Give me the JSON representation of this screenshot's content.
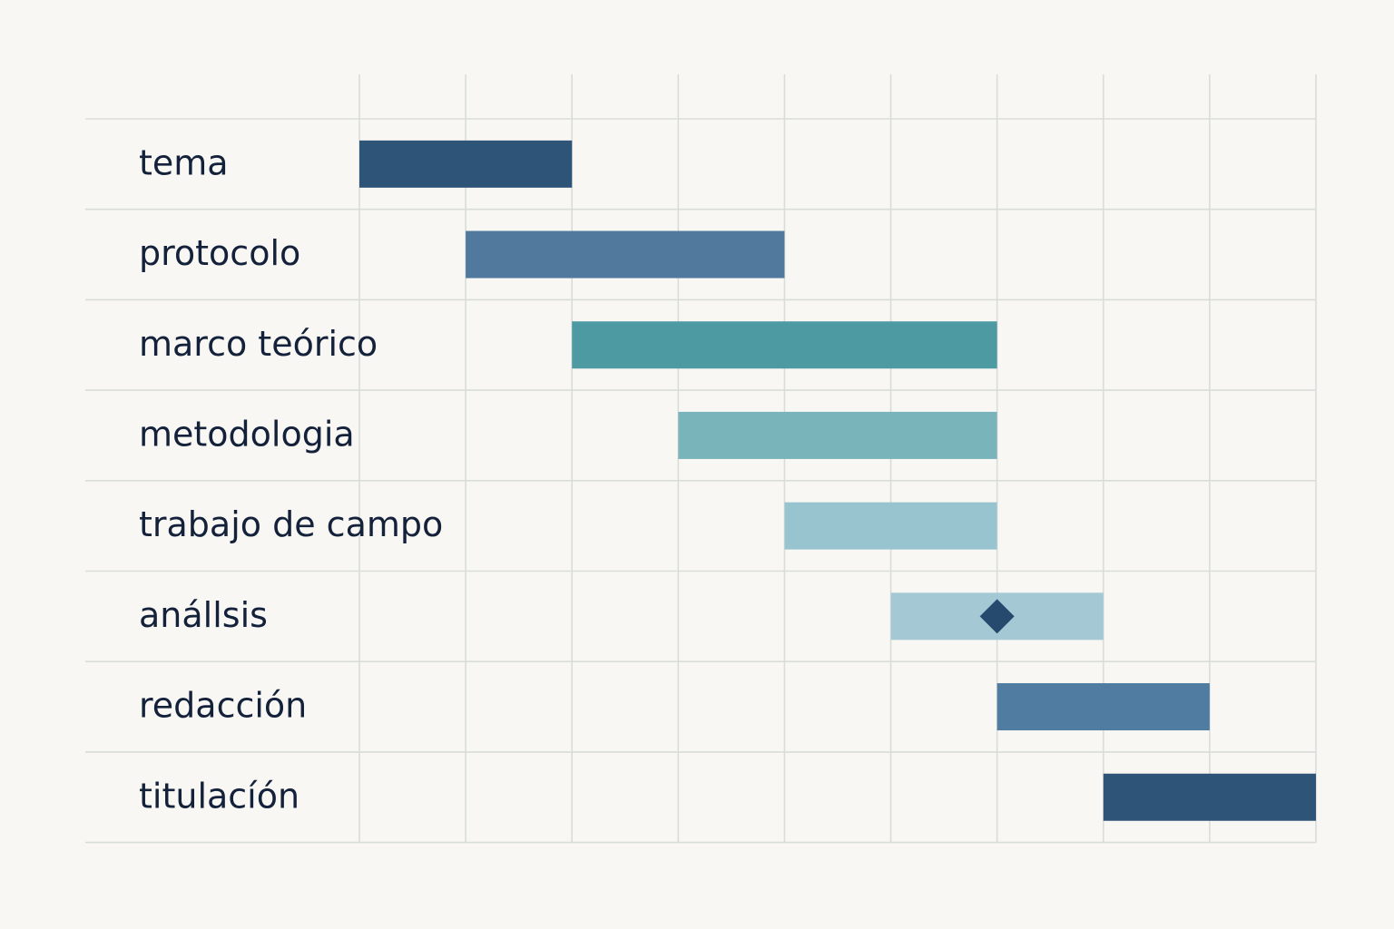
{
  "chart_data": {
    "type": "gantt",
    "time_units": 9,
    "tasks": [
      {
        "label": "tema",
        "start": 0,
        "end": 2,
        "color": "#2e5478"
      },
      {
        "label": "protocolo",
        "start": 1,
        "end": 4,
        "color": "#50799d"
      },
      {
        "label": "marco teórico",
        "start": 2,
        "end": 6,
        "color": "#4e9aa2"
      },
      {
        "label": "metodologia",
        "start": 3,
        "end": 6,
        "color": "#7ab4bb"
      },
      {
        "label": "trabajo de campo",
        "start": 4,
        "end": 6,
        "color": "#98c4cf"
      },
      {
        "label": "anállsis",
        "start": 5,
        "end": 7,
        "color": "#a4c8d4"
      },
      {
        "label": "redacción",
        "start": 6,
        "end": 8,
        "color": "#507ca2"
      },
      {
        "label": "titulacíón",
        "start": 7,
        "end": 9,
        "color": "#2e5478"
      }
    ],
    "milestones": [
      {
        "task": 5,
        "at": 6,
        "color": "#264a6e"
      }
    ],
    "grid": true,
    "legend": "none"
  }
}
